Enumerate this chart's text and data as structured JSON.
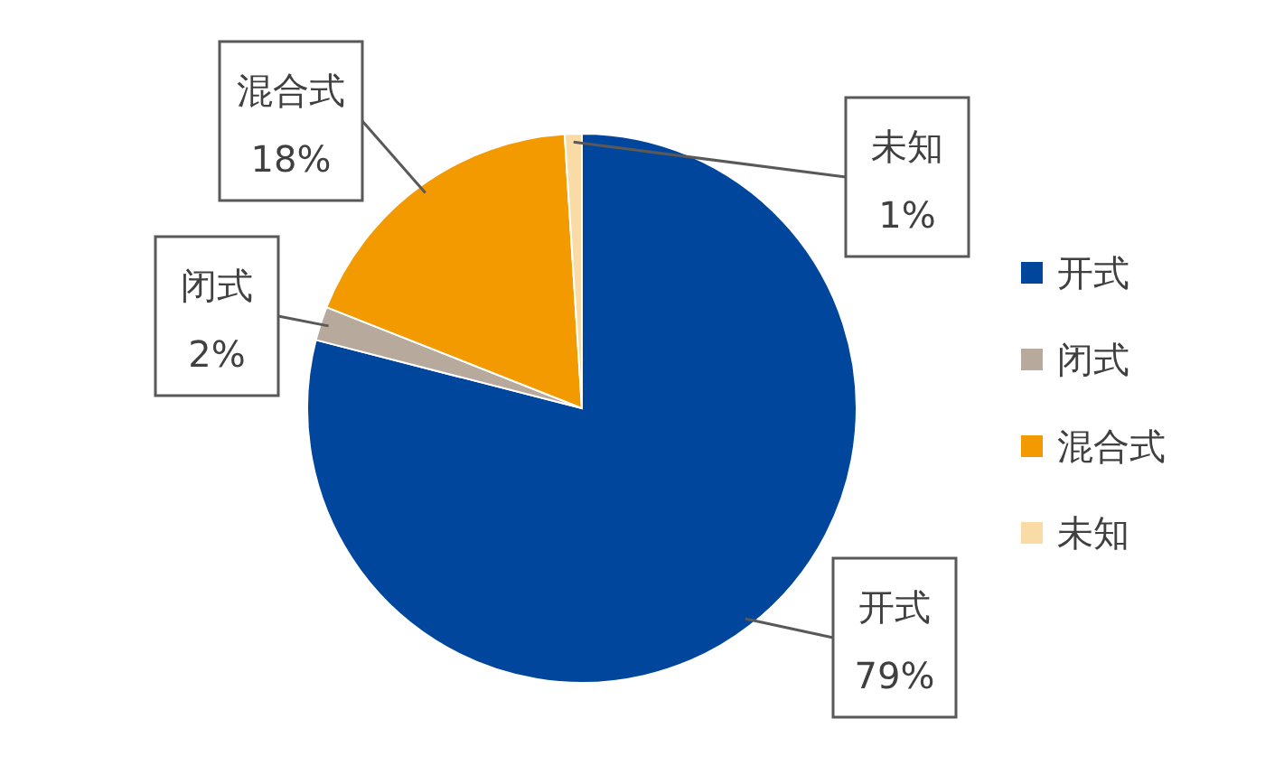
{
  "chart_data": {
    "type": "pie",
    "categories": [
      "开式",
      "闭式",
      "混合式",
      "未知"
    ],
    "values": [
      79,
      2,
      18,
      1
    ],
    "colors": [
      "#00469c",
      "#b7aa9c",
      "#f39a00",
      "#f9dba6"
    ],
    "legend": "right",
    "value_labels": [
      "79%",
      "2%",
      "18%",
      "1%"
    ]
  }
}
